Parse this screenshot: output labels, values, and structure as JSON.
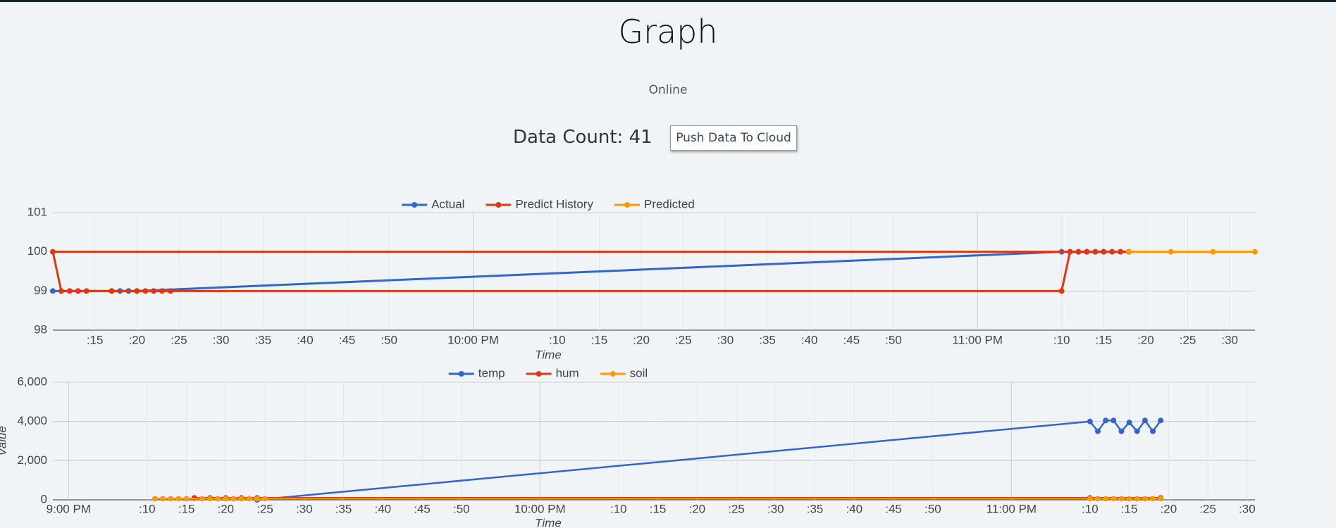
{
  "header": {
    "title": "Graph",
    "status": "Online",
    "count": "Data Count: 41",
    "button": "Push Data To Cloud"
  },
  "chart_data": [
    {
      "type": "line",
      "xlabel": "Time",
      "xlim": [
        "21:10",
        "23:33"
      ],
      "ylim": [
        98,
        101
      ],
      "yticks": [
        98,
        99,
        100,
        101
      ],
      "grid": true,
      "legend": "top",
      "xticks": [
        {
          "value": "21:15",
          "label": ":15"
        },
        {
          "value": "21:20",
          "label": ":20"
        },
        {
          "value": "21:25",
          "label": ":25"
        },
        {
          "value": "21:30",
          "label": ":30"
        },
        {
          "value": "21:35",
          "label": ":35"
        },
        {
          "value": "21:40",
          "label": ":40"
        },
        {
          "value": "21:45",
          "label": ":45"
        },
        {
          "value": "21:50",
          "label": ":50"
        },
        {
          "value": "22:00",
          "label": "10:00 PM"
        },
        {
          "value": "22:10",
          "label": ":10"
        },
        {
          "value": "22:15",
          "label": ":15"
        },
        {
          "value": "22:20",
          "label": ":20"
        },
        {
          "value": "22:25",
          "label": ":25"
        },
        {
          "value": "22:30",
          "label": ":30"
        },
        {
          "value": "22:35",
          "label": ":35"
        },
        {
          "value": "22:40",
          "label": ":40"
        },
        {
          "value": "22:45",
          "label": ":45"
        },
        {
          "value": "22:50",
          "label": ":50"
        },
        {
          "value": "23:00",
          "label": "11:00 PM"
        },
        {
          "value": "23:10",
          "label": ":10"
        },
        {
          "value": "23:15",
          "label": ":15"
        },
        {
          "value": "23:20",
          "label": ":20"
        },
        {
          "value": "23:25",
          "label": ":25"
        },
        {
          "value": "23:30",
          "label": ":30"
        }
      ],
      "series": [
        {
          "name": "Actual",
          "color": "#3366cc",
          "x": [
            "21:10",
            "21:17",
            "21:18",
            "21:19",
            "21:20",
            "23:10",
            "23:11",
            "23:12",
            "23:13",
            "23:14",
            "23:15",
            "23:16",
            "23:17",
            "23:18"
          ],
          "values": [
            99,
            99,
            99,
            99,
            99,
            100,
            100,
            100,
            100,
            100,
            100,
            100,
            100,
            100
          ]
        },
        {
          "name": "Predict History",
          "color": "#dc3912",
          "x": [
            "23:13",
            "21:10",
            "21:11",
            "21:12",
            "21:13",
            "21:14",
            "21:17",
            "21:20",
            "21:21",
            "21:22",
            "21:23",
            "21:24",
            "23:10",
            "23:11",
            "23:12",
            "23:13",
            "23:14",
            "23:15",
            "23:16",
            "23:17",
            "23:18"
          ],
          "values": [
            100,
            100,
            99,
            99,
            99,
            99,
            99,
            99,
            99,
            99,
            99,
            99,
            99,
            100,
            100,
            100,
            100,
            100,
            100,
            100,
            100
          ]
        },
        {
          "name": "Predicted",
          "color": "#ff9900",
          "x": [
            "23:18",
            "23:23",
            "23:28",
            "23:33"
          ],
          "values": [
            100,
            100,
            100,
            100
          ]
        }
      ]
    },
    {
      "type": "line",
      "xlabel": "Time",
      "ylabel": "Value",
      "xlim": [
        "20:58",
        "23:31"
      ],
      "ylim": [
        0,
        6000
      ],
      "yticks": [
        0,
        {
          "value": 2000,
          "label": "2,000"
        },
        {
          "value": 4000,
          "label": "4,000"
        },
        {
          "value": 6000,
          "label": "6,000"
        }
      ],
      "grid": true,
      "legend": "top",
      "xticks": [
        {
          "value": "21:00",
          "label": "9:00 PM"
        },
        {
          "value": "21:10",
          "label": ":10"
        },
        {
          "value": "21:15",
          "label": ":15"
        },
        {
          "value": "21:20",
          "label": ":20"
        },
        {
          "value": "21:25",
          "label": ":25"
        },
        {
          "value": "21:30",
          "label": ":30"
        },
        {
          "value": "21:35",
          "label": ":35"
        },
        {
          "value": "21:40",
          "label": ":40"
        },
        {
          "value": "21:45",
          "label": ":45"
        },
        {
          "value": "21:50",
          "label": ":50"
        },
        {
          "value": "22:00",
          "label": "10:00 PM"
        },
        {
          "value": "22:10",
          "label": ":10"
        },
        {
          "value": "22:15",
          "label": ":15"
        },
        {
          "value": "22:20",
          "label": ":20"
        },
        {
          "value": "22:25",
          "label": ":25"
        },
        {
          "value": "22:30",
          "label": ":30"
        },
        {
          "value": "22:35",
          "label": ":35"
        },
        {
          "value": "22:40",
          "label": ":40"
        },
        {
          "value": "22:45",
          "label": ":45"
        },
        {
          "value": "22:50",
          "label": ":50"
        },
        {
          "value": "23:00",
          "label": "11:00 PM"
        },
        {
          "value": "23:10",
          "label": ":10"
        },
        {
          "value": "23:15",
          "label": ":15"
        },
        {
          "value": "23:20",
          "label": ":20"
        },
        {
          "value": "23:25",
          "label": ":25"
        },
        {
          "value": "23:30",
          "label": ":30"
        }
      ],
      "series": [
        {
          "name": "temp",
          "color": "#3366cc",
          "x": [
            "21:24",
            "23:10",
            "23:11",
            "23:12",
            "23:13",
            "23:14",
            "23:15",
            "23:16",
            "23:17",
            "23:18",
            "23:19"
          ],
          "values": [
            0,
            4000,
            3500,
            4050,
            4050,
            3500,
            3950,
            3500,
            4050,
            3500,
            4050
          ]
        },
        {
          "name": "hum",
          "color": "#dc3912",
          "x": [
            "21:16",
            "21:18",
            "21:20",
            "21:22",
            "21:24",
            "23:10",
            "23:19"
          ],
          "values": [
            99,
            99,
            99,
            99,
            99,
            99,
            99
          ]
        },
        {
          "name": "soil",
          "color": "#ff9900",
          "x": [
            "21:11",
            "21:12",
            "21:13",
            "21:14",
            "21:15",
            "21:17",
            "21:18",
            "21:19",
            "21:20",
            "21:21",
            "21:22",
            "21:23",
            "21:24",
            "21:25",
            "23:10",
            "23:11",
            "23:12",
            "23:13",
            "23:14",
            "23:15",
            "23:16",
            "23:17",
            "23:18",
            "23:19"
          ],
          "values": [
            60,
            60,
            60,
            60,
            60,
            60,
            60,
            60,
            60,
            60,
            60,
            60,
            60,
            60,
            60,
            60,
            60,
            60,
            60,
            60,
            60,
            60,
            60,
            60
          ]
        }
      ]
    }
  ]
}
